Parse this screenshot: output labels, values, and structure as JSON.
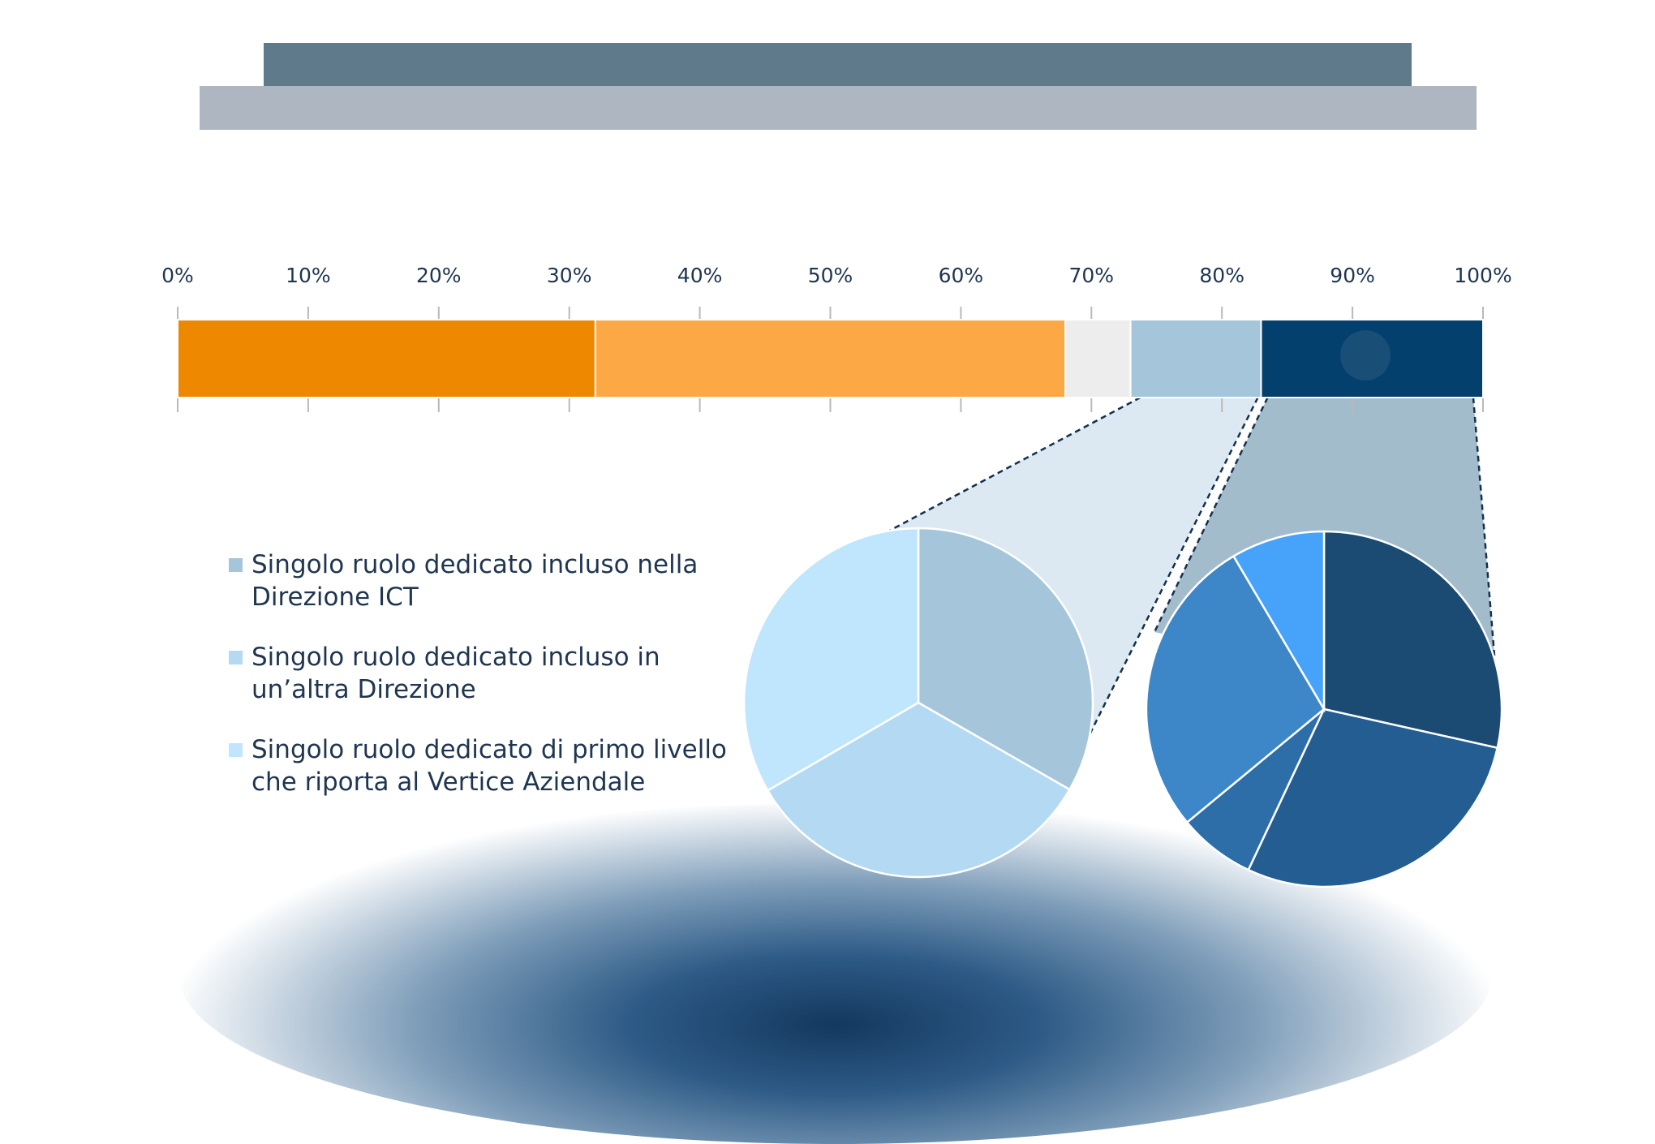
{
  "colors": {
    "header_dark": "#5f7a8b",
    "header_light": "#aeb7c1",
    "text": "#1f3550"
  },
  "chart_data": [
    {
      "type": "bar",
      "orientation": "horizontal",
      "stacked": true,
      "title": "",
      "xlabel": "",
      "ylabel": "",
      "xlim": [
        0,
        100
      ],
      "tick_labels": [
        "0%",
        "10%",
        "20%",
        "30%",
        "40%",
        "50%",
        "60%",
        "70%",
        "80%",
        "90%",
        "100%"
      ],
      "grid": false,
      "segments": [
        {
          "value": 32,
          "color": "#ee8800"
        },
        {
          "value": 36,
          "color": "#fca844"
        },
        {
          "value": 5,
          "color": "#ededed"
        },
        {
          "value": 10,
          "color": "#a4c5da"
        },
        {
          "value": 17,
          "color": "#04406e"
        }
      ]
    },
    {
      "type": "pie",
      "title": "",
      "detail_of_bar_segment": 4,
      "slices": [
        {
          "label": "Singolo ruolo dedicato incluso nella\nDirezione ICT",
          "value": 33.3,
          "color": "#a4c5da"
        },
        {
          "label": "Singolo ruolo dedicato incluso in\nun’altra Direzione",
          "value": 33.3,
          "color": "#b3daf2"
        },
        {
          "label": "Singolo ruolo dedicato di primo livello\nche riporta al Vertice Aziendale",
          "value": 33.4,
          "color": "#c0e6fd"
        }
      ]
    },
    {
      "type": "pie",
      "title": "",
      "detail_of_bar_segment": 5,
      "slices": [
        {
          "value": 28.5,
          "color": "#1b4a73"
        },
        {
          "value": 28.5,
          "color": "#245d92"
        },
        {
          "value": 7.0,
          "color": "#2d6ea9"
        },
        {
          "value": 27.5,
          "color": "#3d86c8"
        },
        {
          "value": 8.5,
          "color": "#47a3fa"
        }
      ]
    }
  ],
  "legend": {
    "placement": "left",
    "items": [
      {
        "text": "Singolo ruolo dedicato incluso nella\nDirezione ICT",
        "color": "#a4c5da"
      },
      {
        "text": "Singolo ruolo dedicato incluso in\nun’altra Direzione",
        "color": "#b3daf2"
      },
      {
        "text": "Singolo ruolo dedicato di primo livello\nche riporta al Vertice Aziendale",
        "color": "#c0e6fd"
      }
    ]
  }
}
